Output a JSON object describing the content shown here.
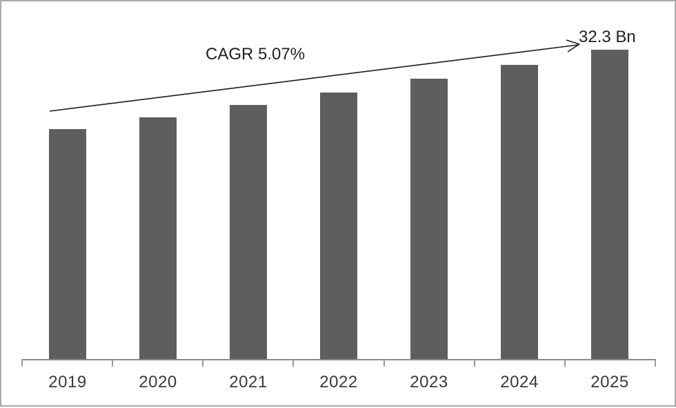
{
  "chart_data": {
    "type": "bar",
    "title": "",
    "xlabel": "",
    "ylabel": "",
    "grid": false,
    "legend": false,
    "categories": [
      "2019",
      "2020",
      "2021",
      "2022",
      "2023",
      "2024",
      "2025"
    ],
    "values": [
      24.0,
      25.2,
      26.5,
      27.8,
      29.3,
      30.7,
      32.3
    ],
    "unit": "Bn",
    "ylim": [
      0,
      32.3
    ],
    "annotations": {
      "cagr_label": "CAGR 5.07%",
      "end_value_label": "32.3 Bn"
    },
    "colors": {
      "bar": "#5e5e5e",
      "axis": "#8a8a8a",
      "tick": "#999999",
      "label_text": "#3a3a3a",
      "annotation_text": "#1f1f1f",
      "arrow": "#1a1a1a",
      "frame_border": "#a9a9a9",
      "background": "#ffffff"
    }
  }
}
